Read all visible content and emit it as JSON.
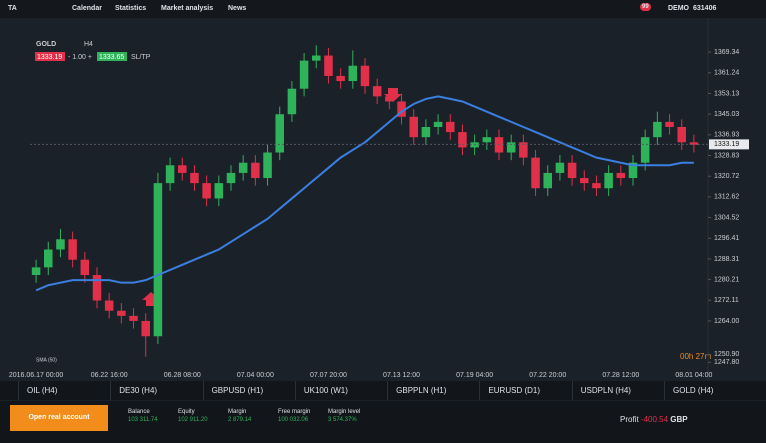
{
  "toolbar": {
    "tabs": [
      "TA",
      "Calendar",
      "Statistics",
      "Market analysis",
      "News"
    ],
    "notifications": "99",
    "account_mode": "DEMO",
    "account_id": "631406"
  },
  "instrument": {
    "symbol": "GOLD",
    "timeframe": "H4",
    "sell_price": "1333.19",
    "spread": "- 1.00 +",
    "buy_price": "1333.65",
    "sl_tp": "SL/TP",
    "countdown": "00h 27m"
  },
  "chart_data": {
    "type": "candlestick",
    "categories": [
      "2016.06.17 00:00",
      null,
      null,
      null,
      null,
      null,
      "06.22 16:00",
      null,
      null,
      null,
      null,
      null,
      "06.28 08:00",
      null,
      null,
      null,
      null,
      null,
      "07.04 00:00",
      null,
      null,
      null,
      null,
      null,
      "07.07 20:00",
      null,
      null,
      null,
      null,
      null,
      "07.13 12:00",
      null,
      null,
      null,
      null,
      null,
      "07.19 04:00",
      null,
      null,
      null,
      null,
      null,
      "07.22 20:00",
      null,
      null,
      null,
      null,
      null,
      "07.28 12:00",
      null,
      null,
      null,
      null,
      null,
      "08.01 04:00"
    ],
    "open": [
      1282,
      1285,
      1292,
      1296,
      1288,
      1282,
      1272,
      1268,
      1266,
      1264,
      1258,
      1318,
      1325,
      1322,
      1318,
      1312,
      1318,
      1322,
      1326,
      1320,
      1330,
      1345,
      1355,
      1366,
      1368,
      1360,
      1358,
      1364,
      1356,
      1352,
      1350,
      1344,
      1336,
      1340,
      1342,
      1338,
      1332,
      1334,
      1336,
      1330,
      1334,
      1328,
      1316,
      1322,
      1326,
      1320,
      1318,
      1316,
      1322,
      1320,
      1326,
      1336,
      1342,
      1340,
      1334
    ],
    "high": [
      1288,
      1295,
      1300,
      1299,
      1291,
      1285,
      1275,
      1271,
      1269,
      1267,
      1322,
      1328,
      1328,
      1325,
      1321,
      1321,
      1325,
      1329,
      1329,
      1333,
      1348,
      1358,
      1369,
      1372,
      1371,
      1363,
      1370,
      1367,
      1359,
      1355,
      1353,
      1347,
      1343,
      1345,
      1345,
      1341,
      1337,
      1339,
      1339,
      1337,
      1337,
      1331,
      1325,
      1329,
      1329,
      1323,
      1321,
      1325,
      1325,
      1329,
      1339,
      1346,
      1345,
      1343,
      1337
    ],
    "low": [
      1279,
      1282,
      1289,
      1285,
      1279,
      1269,
      1265,
      1263,
      1261,
      1250,
      1255,
      1315,
      1319,
      1315,
      1309,
      1309,
      1315,
      1319,
      1317,
      1317,
      1327,
      1342,
      1352,
      1363,
      1357,
      1355,
      1355,
      1353,
      1349,
      1347,
      1341,
      1333,
      1333,
      1337,
      1335,
      1329,
      1329,
      1331,
      1327,
      1327,
      1325,
      1313,
      1313,
      1319,
      1317,
      1315,
      1313,
      1313,
      1317,
      1317,
      1323,
      1333,
      1337,
      1331,
      1330
    ],
    "close": [
      1285,
      1292,
      1296,
      1288,
      1282,
      1272,
      1268,
      1266,
      1264,
      1258,
      1318,
      1325,
      1322,
      1318,
      1312,
      1318,
      1322,
      1326,
      1320,
      1330,
      1345,
      1355,
      1366,
      1368,
      1360,
      1358,
      1364,
      1356,
      1352,
      1350,
      1344,
      1336,
      1340,
      1342,
      1338,
      1332,
      1334,
      1336,
      1330,
      1334,
      1328,
      1316,
      1322,
      1326,
      1320,
      1318,
      1316,
      1322,
      1320,
      1326,
      1336,
      1342,
      1340,
      1334,
      1333
    ],
    "up_color": "#2fb35a",
    "down_color": "#e0304a",
    "sma": {
      "label": "SMA (50)",
      "color": "#3b7fe0",
      "values": [
        1276,
        1278,
        1279,
        1280,
        1280,
        1280,
        1280,
        1279,
        1279,
        1280,
        1282,
        1284,
        1286,
        1288,
        1290,
        1292,
        1295,
        1298,
        1301,
        1304,
        1308,
        1312,
        1316,
        1320,
        1324,
        1328,
        1331,
        1334,
        1338,
        1342,
        1346,
        1349,
        1351,
        1352,
        1351,
        1350,
        1348,
        1346,
        1344,
        1342,
        1340,
        1338,
        1336,
        1334,
        1332,
        1330,
        1328,
        1327,
        1326,
        1325,
        1325,
        1325,
        1325,
        1326,
        1326
      ]
    },
    "current_price": {
      "value": 1333.19,
      "label": "1333.19"
    },
    "ylim": [
      1244,
      1378
    ],
    "yticks": [
      1369.34,
      1361.24,
      1353.13,
      1345.03,
      1336.93,
      1328.83,
      1320.72,
      1312.62,
      1304.52,
      1296.41,
      1288.31,
      1280.21,
      1272.11,
      {
        "value": 1264,
        "label": "1264.00"
      },
      {
        "value": 1250.9,
        "label": "1250.90"
      },
      {
        "value": 1247.8,
        "label": "1247.80"
      }
    ],
    "grid": false
  },
  "tabs": [
    "OIL (H4)",
    "DE30 (H4)",
    "GBPUSD (H1)",
    "UK100 (W1)",
    "GBPPLN (H1)",
    "EURUSD (D1)",
    "USDPLN (H4)",
    "GOLD (H4)"
  ],
  "footer": {
    "button": "Open real account",
    "stats": [
      {
        "label": "Balance",
        "value": "103 311.74"
      },
      {
        "label": "Equity",
        "value": "102 911.20"
      },
      {
        "label": "Margin",
        "value": "2 879.14"
      },
      {
        "label": "Free margin",
        "value": "100 032.06"
      },
      {
        "label": "Margin level",
        "value": "3 574.37%"
      }
    ],
    "profit_label": "Profit",
    "profit": "-400.54",
    "currency": "GBP"
  }
}
